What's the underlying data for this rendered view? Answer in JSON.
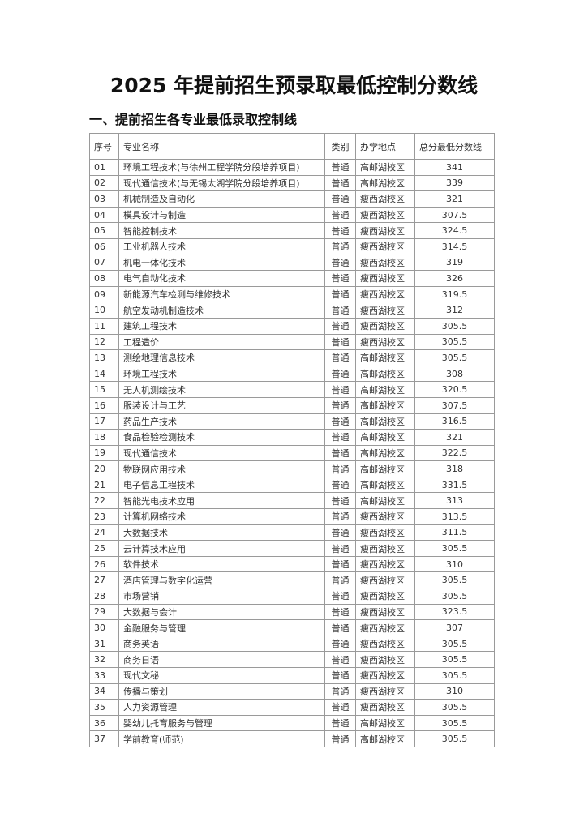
{
  "title": "2025 年提前招生预录取最低控制分数线",
  "subtitle": "一、提前招生各专业最低录取控制线",
  "table": {
    "headers": [
      "序号",
      "专业名称",
      "类别",
      "办学地点",
      "总分最低分数线"
    ],
    "rows": [
      [
        "01",
        "环境工程技术(与徐州工程学院分段培养项目)",
        "普通",
        "高邮湖校区",
        "341"
      ],
      [
        "02",
        "现代通信技术(与无锡太湖学院分段培养项目)",
        "普通",
        "高邮湖校区",
        "339"
      ],
      [
        "03",
        "机械制造及自动化",
        "普通",
        "瘦西湖校区",
        "321"
      ],
      [
        "04",
        "模具设计与制造",
        "普通",
        "瘦西湖校区",
        "307.5"
      ],
      [
        "05",
        "智能控制技术",
        "普通",
        "瘦西湖校区",
        "324.5"
      ],
      [
        "06",
        "工业机器人技术",
        "普通",
        "瘦西湖校区",
        "314.5"
      ],
      [
        "07",
        "机电一体化技术",
        "普通",
        "瘦西湖校区",
        "319"
      ],
      [
        "08",
        "电气自动化技术",
        "普通",
        "瘦西湖校区",
        "326"
      ],
      [
        "09",
        "新能源汽车检测与维修技术",
        "普通",
        "瘦西湖校区",
        "319.5"
      ],
      [
        "10",
        "航空发动机制造技术",
        "普通",
        "瘦西湖校区",
        "312"
      ],
      [
        "11",
        "建筑工程技术",
        "普通",
        "瘦西湖校区",
        "305.5"
      ],
      [
        "12",
        "工程造价",
        "普通",
        "瘦西湖校区",
        "305.5"
      ],
      [
        "13",
        "测绘地理信息技术",
        "普通",
        "高邮湖校区",
        "305.5"
      ],
      [
        "14",
        "环境工程技术",
        "普通",
        "高邮湖校区",
        "308"
      ],
      [
        "15",
        "无人机测绘技术",
        "普通",
        "高邮湖校区",
        "320.5"
      ],
      [
        "16",
        "服装设计与工艺",
        "普通",
        "高邮湖校区",
        "307.5"
      ],
      [
        "17",
        "药品生产技术",
        "普通",
        "高邮湖校区",
        "316.5"
      ],
      [
        "18",
        "食品检验检测技术",
        "普通",
        "高邮湖校区",
        "321"
      ],
      [
        "19",
        "现代通信技术",
        "普通",
        "高邮湖校区",
        "322.5"
      ],
      [
        "20",
        "物联网应用技术",
        "普通",
        "高邮湖校区",
        "318"
      ],
      [
        "21",
        "电子信息工程技术",
        "普通",
        "高邮湖校区",
        "331.5"
      ],
      [
        "22",
        "智能光电技术应用",
        "普通",
        "高邮湖校区",
        "313"
      ],
      [
        "23",
        "计算机网络技术",
        "普通",
        "瘦西湖校区",
        "313.5"
      ],
      [
        "24",
        "大数据技术",
        "普通",
        "瘦西湖校区",
        "311.5"
      ],
      [
        "25",
        "云计算技术应用",
        "普通",
        "瘦西湖校区",
        "305.5"
      ],
      [
        "26",
        "软件技术",
        "普通",
        "瘦西湖校区",
        "310"
      ],
      [
        "27",
        "酒店管理与数字化运营",
        "普通",
        "瘦西湖校区",
        "305.5"
      ],
      [
        "28",
        "市场营销",
        "普通",
        "瘦西湖校区",
        "305.5"
      ],
      [
        "29",
        "大数据与会计",
        "普通",
        "瘦西湖校区",
        "323.5"
      ],
      [
        "30",
        "金融服务与管理",
        "普通",
        "瘦西湖校区",
        "307"
      ],
      [
        "31",
        "商务英语",
        "普通",
        "瘦西湖校区",
        "305.5"
      ],
      [
        "32",
        "商务日语",
        "普通",
        "瘦西湖校区",
        "305.5"
      ],
      [
        "33",
        "现代文秘",
        "普通",
        "瘦西湖校区",
        "305.5"
      ],
      [
        "34",
        "传播与策划",
        "普通",
        "瘦西湖校区",
        "310"
      ],
      [
        "35",
        "人力资源管理",
        "普通",
        "瘦西湖校区",
        "305.5"
      ],
      [
        "36",
        "婴幼儿托育服务与管理",
        "普通",
        "高邮湖校区",
        "305.5"
      ],
      [
        "37",
        "学前教育(师范)",
        "普通",
        "高邮湖校区",
        "305.5"
      ]
    ]
  }
}
